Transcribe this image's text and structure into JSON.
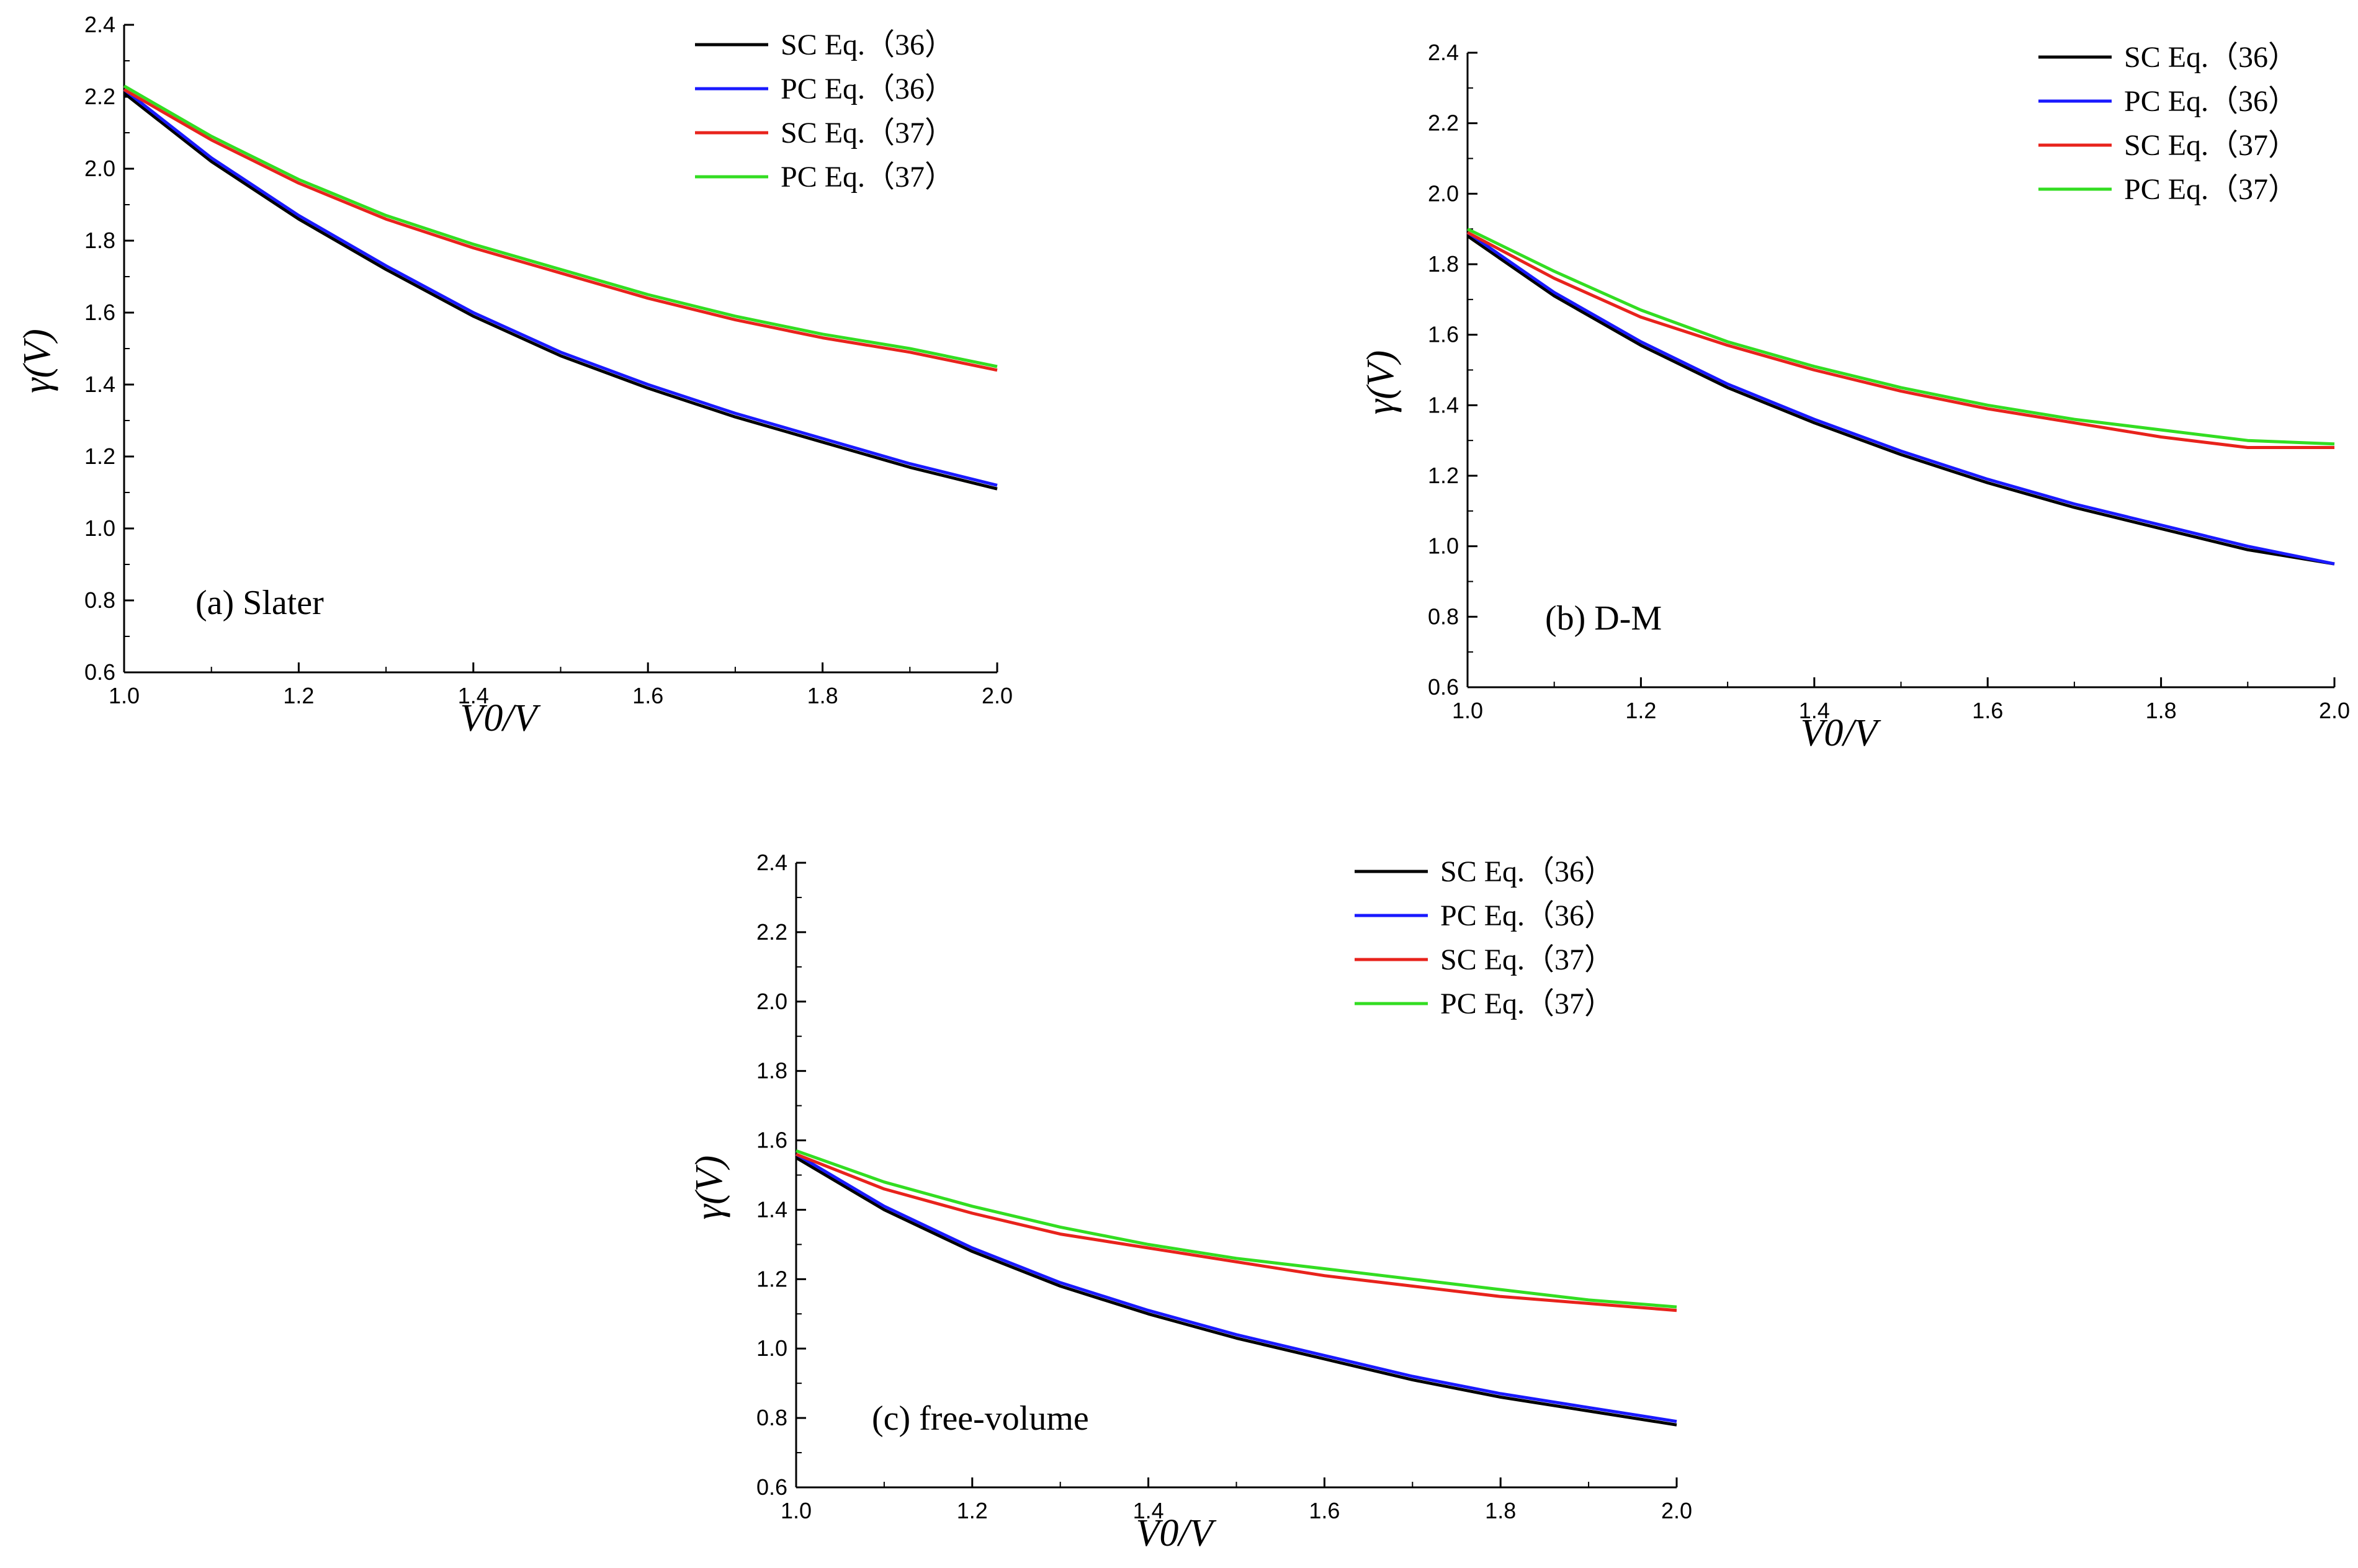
{
  "chart_data": [
    {
      "type": "line",
      "annotation": "(a) Slater",
      "xlabel": "V0/V",
      "ylabel": "γ(V)",
      "xlim": [
        1.0,
        2.0
      ],
      "ylim": [
        0.6,
        2.4
      ],
      "xticks": [
        "1.0",
        "1.2",
        "1.4",
        "1.6",
        "1.8",
        "2.0"
      ],
      "yticks": [
        "0.6",
        "0.8",
        "1.0",
        "1.2",
        "1.4",
        "1.6",
        "1.8",
        "2.0",
        "2.2",
        "2.4"
      ],
      "legend_position": "top-right",
      "x": [
        1.0,
        1.1,
        1.2,
        1.3,
        1.4,
        1.5,
        1.6,
        1.7,
        1.8,
        1.9,
        2.0
      ],
      "series": [
        {
          "name": "SC Eq.（36）",
          "color": "#000000",
          "values": [
            2.21,
            2.02,
            1.86,
            1.72,
            1.59,
            1.48,
            1.39,
            1.31,
            1.24,
            1.17,
            1.11
          ]
        },
        {
          "name": "PC Eq.（36）",
          "color": "#1a1aff",
          "values": [
            2.22,
            2.03,
            1.87,
            1.73,
            1.6,
            1.49,
            1.4,
            1.32,
            1.25,
            1.18,
            1.12
          ]
        },
        {
          "name": "SC Eq.（37）",
          "color": "#e8231c",
          "values": [
            2.22,
            2.08,
            1.96,
            1.86,
            1.78,
            1.71,
            1.64,
            1.58,
            1.53,
            1.49,
            1.44
          ]
        },
        {
          "name": "PC Eq.（37）",
          "color": "#33dd22",
          "values": [
            2.23,
            2.09,
            1.97,
            1.87,
            1.79,
            1.72,
            1.65,
            1.59,
            1.54,
            1.5,
            1.45
          ]
        }
      ]
    },
    {
      "type": "line",
      "annotation": "(b) D-M",
      "xlabel": "V0/V",
      "ylabel": "γ(V)",
      "xlim": [
        1.0,
        2.0
      ],
      "ylim": [
        0.6,
        2.4
      ],
      "xticks": [
        "1.0",
        "1.2",
        "1.4",
        "1.6",
        "1.8",
        "2.0"
      ],
      "yticks": [
        "0.6",
        "0.8",
        "1.0",
        "1.2",
        "1.4",
        "1.6",
        "1.8",
        "2.0",
        "2.2",
        "2.4"
      ],
      "legend_position": "top-right",
      "x": [
        1.0,
        1.1,
        1.2,
        1.3,
        1.4,
        1.5,
        1.6,
        1.7,
        1.8,
        1.9,
        2.0
      ],
      "series": [
        {
          "name": "SC Eq.（36）",
          "color": "#000000",
          "values": [
            1.88,
            1.71,
            1.57,
            1.45,
            1.35,
            1.26,
            1.18,
            1.11,
            1.05,
            0.99,
            0.95
          ]
        },
        {
          "name": "PC Eq.（36）",
          "color": "#1a1aff",
          "values": [
            1.89,
            1.72,
            1.58,
            1.46,
            1.36,
            1.27,
            1.19,
            1.12,
            1.06,
            1.0,
            0.95
          ]
        },
        {
          "name": "SC Eq.（37）",
          "color": "#e8231c",
          "values": [
            1.89,
            1.76,
            1.65,
            1.57,
            1.5,
            1.44,
            1.39,
            1.35,
            1.31,
            1.28,
            1.28
          ]
        },
        {
          "name": "PC Eq.（37）",
          "color": "#33dd22",
          "values": [
            1.9,
            1.78,
            1.67,
            1.58,
            1.51,
            1.45,
            1.4,
            1.36,
            1.33,
            1.3,
            1.29
          ]
        }
      ]
    },
    {
      "type": "line",
      "annotation": "(c) free-volume",
      "xlabel": "V0/V",
      "ylabel": "γ(V)",
      "xlim": [
        1.0,
        2.0
      ],
      "ylim": [
        0.6,
        2.4
      ],
      "xticks": [
        "1.0",
        "1.2",
        "1.4",
        "1.6",
        "1.8",
        "2.0"
      ],
      "yticks": [
        "0.6",
        "0.8",
        "1.0",
        "1.2",
        "1.4",
        "1.6",
        "1.8",
        "2.0",
        "2.2",
        "2.4"
      ],
      "legend_position": "top-right",
      "x": [
        1.0,
        1.1,
        1.2,
        1.3,
        1.4,
        1.5,
        1.6,
        1.7,
        1.8,
        1.9,
        2.0
      ],
      "series": [
        {
          "name": "SC Eq.（36）",
          "color": "#000000",
          "values": [
            1.55,
            1.4,
            1.28,
            1.18,
            1.1,
            1.03,
            0.97,
            0.91,
            0.86,
            0.82,
            0.78
          ]
        },
        {
          "name": "PC Eq.（36）",
          "color": "#1a1aff",
          "values": [
            1.56,
            1.41,
            1.29,
            1.19,
            1.11,
            1.04,
            0.98,
            0.92,
            0.87,
            0.83,
            0.79
          ]
        },
        {
          "name": "SC Eq.（37）",
          "color": "#e8231c",
          "values": [
            1.56,
            1.46,
            1.39,
            1.33,
            1.29,
            1.25,
            1.21,
            1.18,
            1.15,
            1.13,
            1.11
          ]
        },
        {
          "name": "PC Eq.（37）",
          "color": "#33dd22",
          "values": [
            1.57,
            1.48,
            1.41,
            1.35,
            1.3,
            1.26,
            1.23,
            1.2,
            1.17,
            1.14,
            1.12
          ]
        }
      ]
    }
  ]
}
